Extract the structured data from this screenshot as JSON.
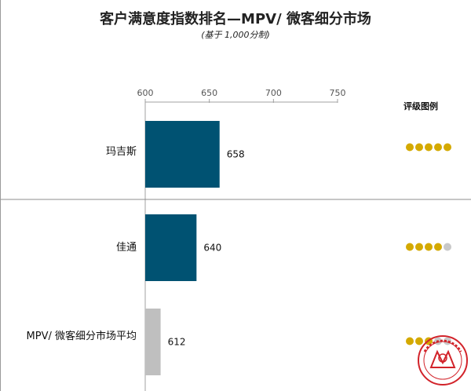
{
  "header": {
    "title": "客户满意度指数排名—MPV/ 微客细分市场",
    "subtitle": "(基于 1,000分制)"
  },
  "legend": {
    "title": "评级图例"
  },
  "colors": {
    "primary_bar": "#005272",
    "average_bar": "#bfbfbf",
    "dot_filled": "#d4a900",
    "dot_empty": "#c8c8c8",
    "seal_red": "#d2232a"
  },
  "chart_data": {
    "type": "bar",
    "orientation": "horizontal",
    "title": "客户满意度指数排名—MPV/ 微客细分市场",
    "subtitle": "(基于 1,000分制)",
    "xlim": [
      600,
      750
    ],
    "xticks": [
      600,
      650,
      700,
      750
    ],
    "xtick_labels": [
      "600",
      "650",
      "700",
      "750"
    ],
    "categories": [
      "玛吉斯",
      "佳通",
      "MPV/ 微客细分市场平均"
    ],
    "values": [
      658,
      640,
      612
    ],
    "value_labels": [
      "658",
      "640",
      "612"
    ],
    "bar_colors": [
      "#005272",
      "#005272",
      "#bfbfbf"
    ],
    "ratings": [
      5,
      4,
      3
    ],
    "rating_max": 5
  }
}
